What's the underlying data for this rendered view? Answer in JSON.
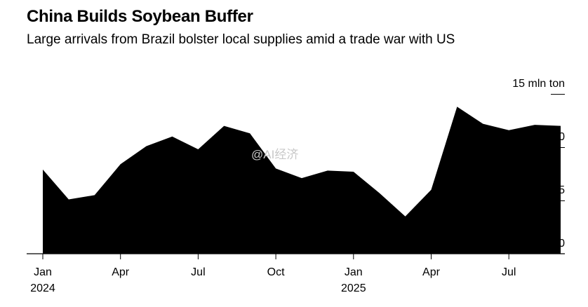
{
  "header": {
    "title": "China Builds Soybean Buffer",
    "subtitle": "Large arrivals from Brazil bolster local supplies amid a trade war with US"
  },
  "watermark": "@AI经济",
  "colors": {
    "area": "#000000",
    "axis": "#000000",
    "background": "#ffffff",
    "watermark": "#c8c8c8"
  },
  "chart_data": {
    "type": "area",
    "title": "China Builds Soybean Buffer",
    "subtitle": "Large arrivals from Brazil bolster local supplies amid a trade war with US",
    "unit": "mln ton",
    "y_unit_label": "15 mln ton",
    "ylim": [
      0,
      15
    ],
    "y_ticks": [
      {
        "value": 15,
        "label": "15 mln ton"
      },
      {
        "value": 10,
        "label": "10"
      },
      {
        "value": 5,
        "label": "5"
      },
      {
        "value": 0,
        "label": "0"
      }
    ],
    "x_ticks": [
      {
        "x": "2024-01",
        "label": "Jan",
        "sublabel": "2024"
      },
      {
        "x": "2024-04",
        "label": "Apr",
        "sublabel": ""
      },
      {
        "x": "2024-07",
        "label": "Jul",
        "sublabel": ""
      },
      {
        "x": "2024-10",
        "label": "Oct",
        "sublabel": ""
      },
      {
        "x": "2025-01",
        "label": "Jan",
        "sublabel": "2025"
      },
      {
        "x": "2025-04",
        "label": "Apr",
        "sublabel": ""
      },
      {
        "x": "2025-07",
        "label": "Jul",
        "sublabel": ""
      }
    ],
    "x": [
      "2024-01",
      "2024-02",
      "2024-03",
      "2024-04",
      "2024-05",
      "2024-06",
      "2024-07",
      "2024-08",
      "2024-09",
      "2024-10",
      "2024-11",
      "2024-12",
      "2025-01",
      "2025-02",
      "2025-03",
      "2025-04",
      "2025-05",
      "2025-06",
      "2025-07",
      "2025-08",
      "2025-09"
    ],
    "series": [
      {
        "values": [
          7.9,
          5.1,
          5.5,
          8.4,
          10.1,
          11.0,
          9.8,
          12.0,
          11.3,
          8.0,
          7.1,
          7.8,
          7.7,
          5.7,
          3.5,
          6.0,
          13.8,
          12.2,
          11.6,
          12.1,
          12.0
        ]
      }
    ],
    "grid": false,
    "legend": "none"
  }
}
